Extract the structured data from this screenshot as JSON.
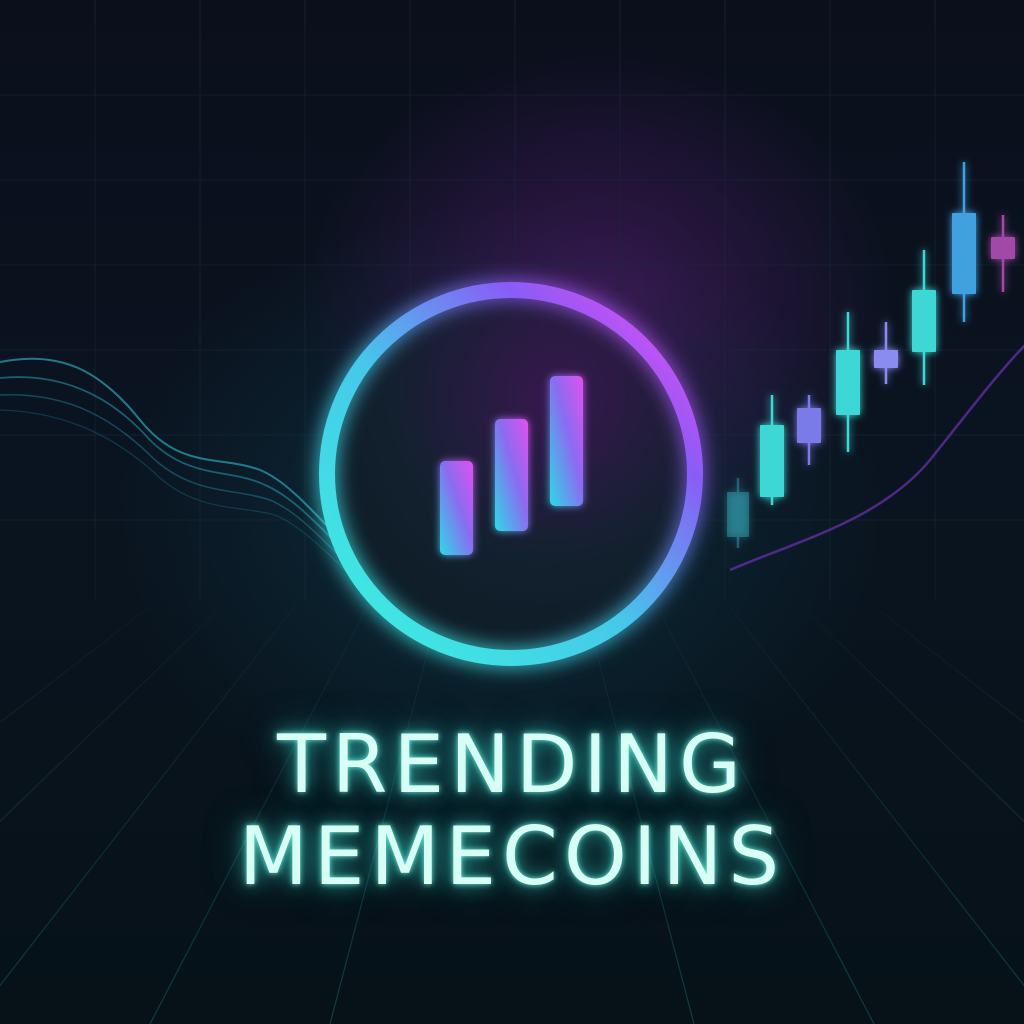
{
  "title": {
    "line1": "TRENDING",
    "line2": "MEMECOINS"
  },
  "logo": {
    "icon": "rising-bars-icon",
    "ring_gradient": [
      "#3ef2e0",
      "#8a5cf6",
      "#f04af0"
    ],
    "bar_gradient": [
      "#2fd8e8",
      "#e050f0"
    ]
  },
  "colors": {
    "background": "#0a1420",
    "glow_teal": "#3ef2e0",
    "glow_magenta": "#e23fe8",
    "title_text": "#d8fff6"
  },
  "decor": {
    "left": "flowing-wave-lines",
    "right": "rising-candlesticks",
    "floor": "perspective-grid"
  }
}
